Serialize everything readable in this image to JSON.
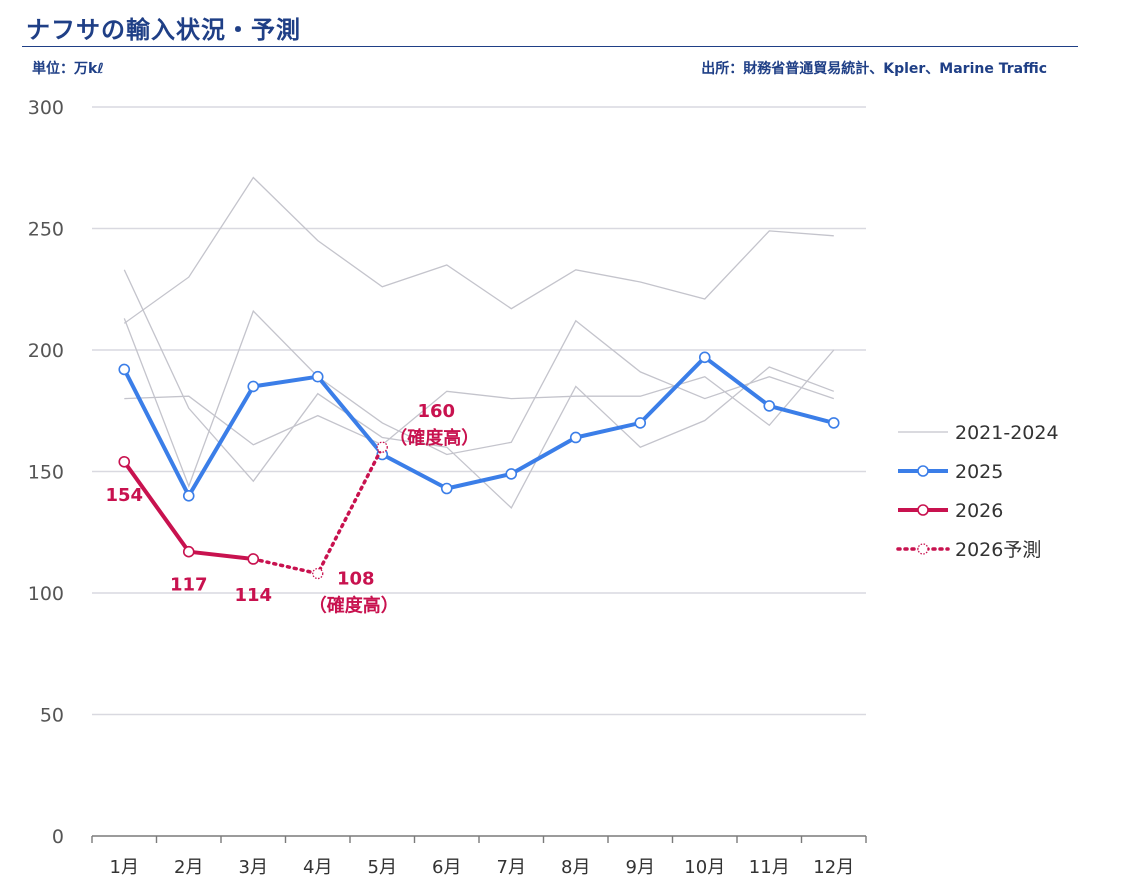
{
  "header": {
    "title": "ナフサの輸入状況・予測",
    "unit": "単位：万kℓ",
    "source": "出所：財務省普通貿易統計、Kpler、Marine Traffic"
  },
  "colors": {
    "history": "#c4c4cc",
    "y2025": "#3b7ee8",
    "y2026": "#c8124f",
    "title": "#1f3f86",
    "grid": "#d9d9e0"
  },
  "chart_data": {
    "type": "line",
    "categories": [
      "1月",
      "2月",
      "3月",
      "4月",
      "5月",
      "6月",
      "7月",
      "8月",
      "9月",
      "10月",
      "11月",
      "12月"
    ],
    "ylim": [
      0,
      300
    ],
    "yticks": [
      "0",
      "50",
      "100",
      "150",
      "200",
      "250",
      "300"
    ],
    "grid": true,
    "legend_position": "right",
    "series": [
      {
        "name": "2021-2024",
        "values": [
          211,
          230,
          271,
          245,
          226,
          235,
          217,
          233,
          228,
          221,
          249,
          247
        ]
      },
      {
        "name": "",
        "values": [
          233,
          176,
          146,
          182,
          164,
          160,
          135,
          185,
          160,
          171,
          193,
          183
        ]
      },
      {
        "name": "",
        "values": [
          213,
          144,
          216,
          189,
          170,
          157,
          162,
          212,
          191,
          180,
          189,
          180
        ]
      },
      {
        "name": "",
        "values": [
          180,
          181,
          161,
          173,
          161,
          183,
          180,
          181,
          181,
          189,
          169,
          200
        ]
      },
      {
        "name": "2025",
        "values": [
          192,
          140,
          185,
          189,
          157,
          143,
          149,
          164,
          170,
          197,
          177,
          170
        ]
      },
      {
        "name": "2026",
        "values": [
          154,
          117,
          114,
          null,
          null,
          null,
          null,
          null,
          null,
          null,
          null,
          null
        ]
      },
      {
        "name": "2026予測",
        "values": [
          null,
          null,
          114,
          108,
          160,
          null,
          null,
          null,
          null,
          null,
          null,
          null
        ]
      }
    ],
    "annotations": [
      {
        "index": 0,
        "text": "154"
      },
      {
        "index": 1,
        "text": "117"
      },
      {
        "index": 2,
        "text": "114"
      },
      {
        "index": 3,
        "text": "108",
        "note": "（確度高）"
      },
      {
        "index": 4,
        "text": "160",
        "note": "（確度高）"
      }
    ]
  }
}
